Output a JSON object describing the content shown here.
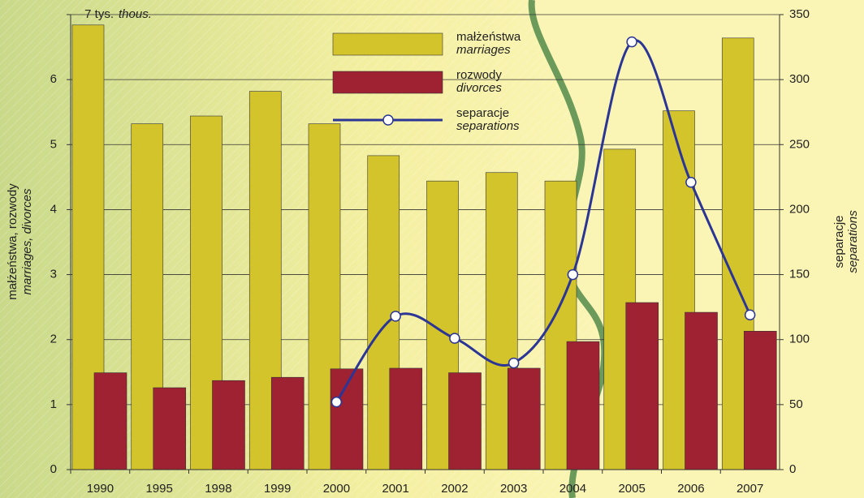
{
  "chart_data": {
    "type": "bar_line",
    "y_unit_label": "thous.",
    "y_axis_label": "małżeństwa, rozwody",
    "y_axis_label_en": "marriages, divorces",
    "y2_axis_label": "separacje",
    "y2_axis_label_en": "separations",
    "categories": [
      "1990",
      "1995",
      "1998",
      "1999",
      "2000",
      "2001",
      "2002",
      "2003",
      "2004",
      "2005",
      "2006",
      "2007"
    ],
    "series": [
      {
        "name": "małżeństwa",
        "name_en": "marriages",
        "type": "bar",
        "color": "#d4c42c",
        "values": [
          6.84,
          5.32,
          5.44,
          5.82,
          5.32,
          4.83,
          4.44,
          4.57,
          4.44,
          4.93,
          5.52,
          6.64
        ]
      },
      {
        "name": "rozwody",
        "name_en": "divorces",
        "type": "bar",
        "color": "#9e2232",
        "values": [
          1.49,
          1.26,
          1.37,
          1.42,
          1.55,
          1.56,
          1.49,
          1.56,
          1.97,
          2.57,
          2.42,
          2.13
        ]
      },
      {
        "name": "separacje",
        "name_en": "separations",
        "type": "line",
        "axis": "y2",
        "color": "#2b3595",
        "values": [
          null,
          null,
          null,
          null,
          52,
          118,
          101,
          82,
          150,
          329,
          221,
          119
        ]
      }
    ],
    "ylim": [
      0,
      7
    ],
    "yticks": [
      0,
      1,
      2,
      3,
      4,
      5,
      6,
      {
        "value": 7,
        "label": "7 tys."
      }
    ],
    "y2lim": [
      0,
      350
    ],
    "y2ticks": [
      0,
      50,
      100,
      150,
      200,
      250,
      300,
      350
    ],
    "grid": true
  }
}
